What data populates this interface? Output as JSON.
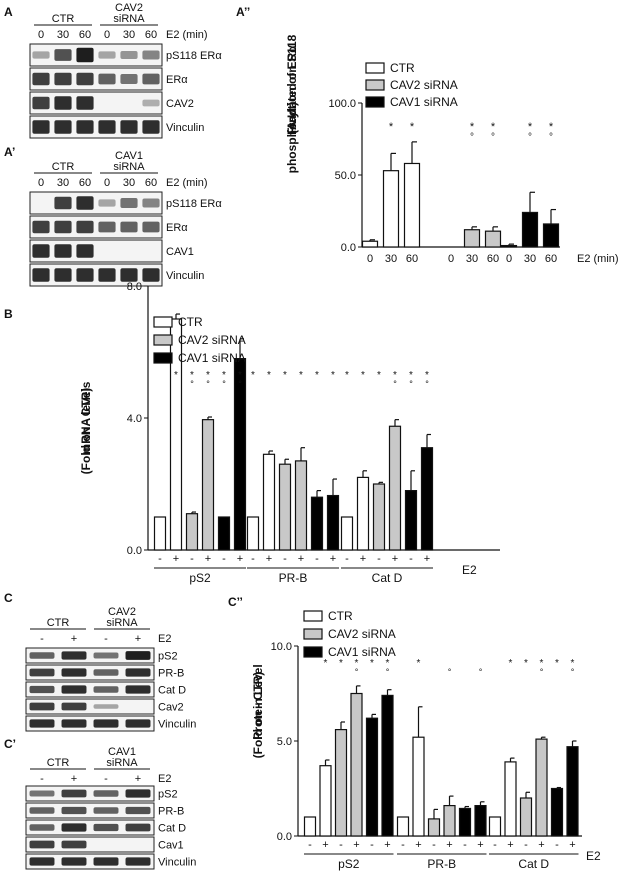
{
  "figure": {
    "panel_A": {
      "letter": "A",
      "groups": [
        "CTR",
        "CAV2\nsiRNA"
      ],
      "times": [
        "0",
        "30",
        "60",
        "0",
        "30",
        "60"
      ],
      "time_label": "E2 (min)",
      "bands": [
        "pS118 ERα",
        "ERα",
        "CAV2",
        "Vinculin"
      ]
    },
    "panel_A1": {
      "letter": "A’",
      "groups": [
        "CTR",
        "CAV1\nsiRNA"
      ],
      "times": [
        "0",
        "30",
        "60",
        "0",
        "30",
        "60"
      ],
      "time_label": "E2 (min)",
      "bands": [
        "pS118 ERα",
        "ERα",
        "CAV1",
        "Vinculin"
      ]
    },
    "panel_C": {
      "letter": "C",
      "groups": [
        "CTR",
        "CAV2\nsiRNA"
      ],
      "treat": [
        "-",
        "+",
        "-",
        "+"
      ],
      "treat_label": "E2",
      "bands": [
        "pS2",
        "PR-B",
        "Cat D",
        "Cav2",
        "Vinculin"
      ]
    },
    "panel_C1": {
      "letter": "C’",
      "groups": [
        "CTR",
        "CAV1\nsiRNA"
      ],
      "treat": [
        "-",
        "+",
        "-",
        "+"
      ],
      "treat_label": "E2",
      "bands": [
        "pS2",
        "PR-B",
        "Cat D",
        "Cav1",
        "Vinculin"
      ]
    }
  },
  "colors": {
    "ctr": "#ffffff",
    "cav2": "#c8c8c8",
    "cav1": "#000000",
    "stroke": "#111111"
  },
  "chart_data": [
    {
      "id": "A2",
      "letter": "A’’",
      "type": "bar",
      "ylabel": "Fraction of ERα\nphosphorylated on S118\n(A.U.)",
      "ylim": [
        0,
        100
      ],
      "yticks": [
        "0.0",
        "50.0",
        "100.0"
      ],
      "xlabel_right": "E2 (min)",
      "legend": [
        "CTR",
        "CAV2 siRNA",
        "CAV1 siRNA"
      ],
      "groups": [
        {
          "series": "CTR",
          "x": [
            "0",
            "30",
            "60"
          ],
          "values": [
            4,
            53,
            58
          ],
          "errors": [
            1,
            12,
            15
          ],
          "sig1": [
            "",
            "*",
            "*"
          ],
          "sig2": [
            "",
            "",
            ""
          ]
        },
        {
          "series": "CAV2 siRNA",
          "x": [
            "0",
            "30",
            "60"
          ],
          "values": [
            0,
            12,
            11
          ],
          "errors": [
            0,
            2,
            3
          ],
          "sig1": [
            "",
            "*",
            "*"
          ],
          "sig2": [
            "",
            "°",
            "°"
          ]
        },
        {
          "series": "CAV1 siRNA",
          "x": [
            "0",
            "30",
            "60"
          ],
          "values": [
            1,
            24,
            16
          ],
          "errors": [
            1,
            14,
            10
          ],
          "sig1": [
            "",
            "*",
            "*"
          ],
          "sig2": [
            "",
            "°",
            "°"
          ]
        }
      ]
    },
    {
      "id": "B",
      "letter": "B",
      "type": "bar",
      "ylabel": "mRNA levels\n(Fold on - CTR)",
      "ylim": [
        0,
        8
      ],
      "yticks": [
        "0.0",
        "4.0",
        "8.0"
      ],
      "legend": [
        "CTR",
        "CAV2 siRNA",
        "CAV1 siRNA"
      ],
      "treatment_label": "E2",
      "genes": [
        {
          "name": "pS2",
          "bars": [
            {
              "s": 0,
              "t": "-",
              "v": 1.0,
              "e": 0
            },
            {
              "s": 0,
              "t": "+",
              "v": 7.0,
              "e": 0.15
            },
            {
              "s": 1,
              "t": "-",
              "v": 1.1,
              "e": 0.05
            },
            {
              "s": 1,
              "t": "+",
              "v": 3.95,
              "e": 0.08
            },
            {
              "s": 2,
              "t": "-",
              "v": 1.0,
              "e": 0
            },
            {
              "s": 2,
              "t": "+",
              "v": 5.8,
              "e": 0.6
            }
          ],
          "sig1": [
            "",
            "*",
            "*",
            "*",
            "*",
            "*"
          ],
          "sig2": [
            "",
            "",
            "°",
            "°",
            "°",
            "°"
          ]
        },
        {
          "name": "PR-B",
          "bars": [
            {
              "s": 0,
              "t": "-",
              "v": 1.0,
              "e": 0
            },
            {
              "s": 0,
              "t": "+",
              "v": 2.9,
              "e": 0.1
            },
            {
              "s": 1,
              "t": "-",
              "v": 2.6,
              "e": 0.15
            },
            {
              "s": 1,
              "t": "+",
              "v": 2.7,
              "e": 0.4
            },
            {
              "s": 2,
              "t": "-",
              "v": 1.6,
              "e": 0.2
            },
            {
              "s": 2,
              "t": "+",
              "v": 1.65,
              "e": 0.5
            }
          ],
          "sig1": [
            "*",
            "*",
            "*",
            "*",
            "*",
            "*"
          ],
          "sig2": [
            "",
            "",
            "",
            "",
            "",
            ""
          ]
        },
        {
          "name": "Cat D",
          "bars": [
            {
              "s": 0,
              "t": "-",
              "v": 1.0,
              "e": 0
            },
            {
              "s": 0,
              "t": "+",
              "v": 2.2,
              "e": 0.2
            },
            {
              "s": 1,
              "t": "-",
              "v": 2.0,
              "e": 0.05
            },
            {
              "s": 1,
              "t": "+",
              "v": 3.75,
              "e": 0.2
            },
            {
              "s": 2,
              "t": "-",
              "v": 1.8,
              "e": 0.6
            },
            {
              "s": 2,
              "t": "+",
              "v": 3.1,
              "e": 0.4
            }
          ],
          "sig1": [
            "*",
            "*",
            "*",
            "*",
            "*",
            "*"
          ],
          "sig2": [
            "",
            "",
            "",
            "°",
            "°",
            "°"
          ]
        }
      ]
    },
    {
      "id": "C2",
      "letter": "C’’",
      "type": "bar",
      "ylabel": "Protein Level\n(Fold on - CTR)",
      "ylim": [
        0,
        10
      ],
      "yticks": [
        "0.0",
        "5.0",
        "10.0"
      ],
      "legend": [
        "CTR",
        "CAV2 siRNA",
        "CAV1 siRNA"
      ],
      "treatment_label": "E2",
      "genes": [
        {
          "name": "pS2",
          "bars": [
            {
              "s": 0,
              "t": "-",
              "v": 1.0,
              "e": 0
            },
            {
              "s": 0,
              "t": "+",
              "v": 3.7,
              "e": 0.3
            },
            {
              "s": 1,
              "t": "-",
              "v": 5.6,
              "e": 0.4
            },
            {
              "s": 1,
              "t": "+",
              "v": 7.5,
              "e": 0.4
            },
            {
              "s": 2,
              "t": "-",
              "v": 6.2,
              "e": 0.2
            },
            {
              "s": 2,
              "t": "+",
              "v": 7.4,
              "e": 0.3
            }
          ],
          "sig1": [
            "",
            "*",
            "*",
            "*",
            "*",
            "*"
          ],
          "sig2": [
            "",
            "",
            "",
            "°",
            "",
            "°"
          ]
        },
        {
          "name": "PR-B",
          "bars": [
            {
              "s": 0,
              "t": "-",
              "v": 1.0,
              "e": 0
            },
            {
              "s": 0,
              "t": "+",
              "v": 5.2,
              "e": 1.6
            },
            {
              "s": 1,
              "t": "-",
              "v": 0.9,
              "e": 0.5
            },
            {
              "s": 1,
              "t": "+",
              "v": 1.6,
              "e": 0.5
            },
            {
              "s": 2,
              "t": "-",
              "v": 1.45,
              "e": 0.1
            },
            {
              "s": 2,
              "t": "+",
              "v": 1.6,
              "e": 0.2
            }
          ],
          "sig1": [
            "",
            "*",
            "",
            "",
            "",
            ""
          ],
          "sig2": [
            "",
            "",
            "",
            "°",
            "",
            "°"
          ]
        },
        {
          "name": "Cat D",
          "bars": [
            {
              "s": 0,
              "t": "-",
              "v": 1.0,
              "e": 0
            },
            {
              "s": 0,
              "t": "+",
              "v": 3.9,
              "e": 0.2
            },
            {
              "s": 1,
              "t": "-",
              "v": 2.0,
              "e": 0.3
            },
            {
              "s": 1,
              "t": "+",
              "v": 5.1,
              "e": 0.1
            },
            {
              "s": 2,
              "t": "-",
              "v": 2.5,
              "e": 0.05
            },
            {
              "s": 2,
              "t": "+",
              "v": 4.7,
              "e": 0.3
            }
          ],
          "sig1": [
            "",
            "*",
            "*",
            "*",
            "*",
            "*"
          ],
          "sig2": [
            "",
            "",
            "",
            "°",
            "",
            "°"
          ]
        }
      ]
    }
  ]
}
